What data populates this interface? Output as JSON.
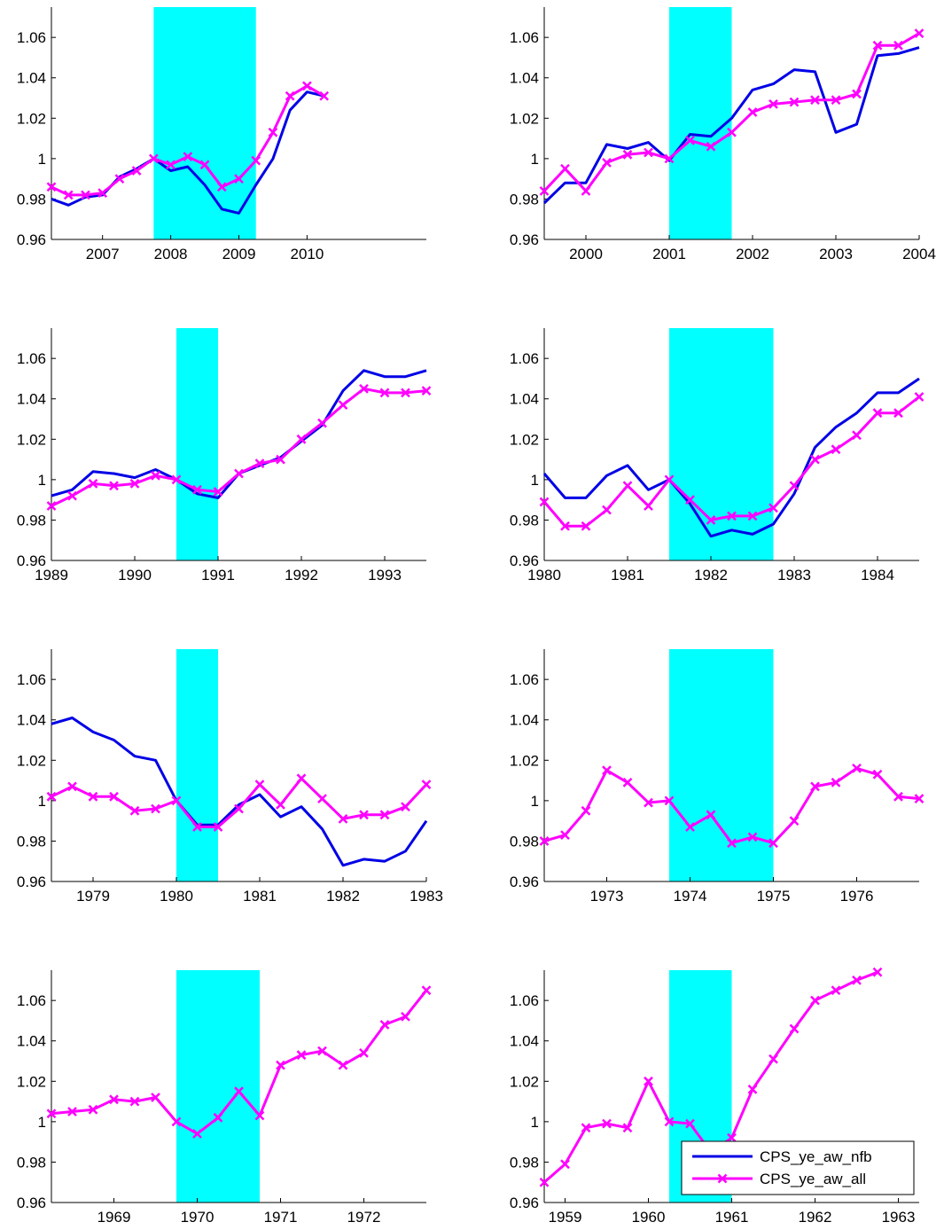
{
  "colors": {
    "recession_band": "#00ffff",
    "nfb_line": "#0000e6",
    "all_line": "#ff00ff",
    "axis": "#000000"
  },
  "legend": {
    "placement": "bottom-right of last panel",
    "entries": [
      "CPS_ye_aw_nfb",
      "CPS_ye_aw_all"
    ]
  },
  "chart_data": [
    {
      "type": "line",
      "ylim": [
        0.96,
        1.075
      ],
      "yticks": [
        0.96,
        0.98,
        1,
        1.02,
        1.04,
        1.06
      ],
      "ytick_labels": [
        "0.96",
        "0.98",
        "1",
        "1.02",
        "1.04",
        "1.06"
      ],
      "xlim": [
        2006.25,
        2011.75
      ],
      "xticks": [
        2007,
        2008,
        2009,
        2010
      ],
      "xtick_labels": [
        "2007",
        "2008",
        "2009",
        "2010"
      ],
      "shade": [
        2007.75,
        2009.25
      ],
      "series": [
        {
          "key": "nfb",
          "name": "CPS_ye_aw_nfb",
          "x": [
            2006.25,
            2006.5,
            2006.75,
            2007,
            2007.25,
            2007.5,
            2007.75,
            2008,
            2008.25,
            2008.5,
            2008.75,
            2009,
            2009.25,
            2009.5,
            2009.75,
            2010,
            2010.25
          ],
          "values": [
            0.98,
            0.977,
            0.981,
            0.982,
            0.991,
            0.995,
            1.0,
            0.994,
            0.996,
            0.987,
            0.975,
            0.973,
            0.987,
            1.0,
            1.024,
            1.033,
            1.031
          ]
        },
        {
          "key": "all",
          "name": "CPS_ye_aw_all",
          "x": [
            2006.25,
            2006.5,
            2006.75,
            2007,
            2007.25,
            2007.5,
            2007.75,
            2008,
            2008.25,
            2008.5,
            2008.75,
            2009,
            2009.25,
            2009.5,
            2009.75,
            2010,
            2010.25
          ],
          "values": [
            0.986,
            0.982,
            0.982,
            0.983,
            0.99,
            0.994,
            1.0,
            0.997,
            1.001,
            0.997,
            0.986,
            0.99,
            0.999,
            1.013,
            1.031,
            1.036,
            1.031
          ]
        }
      ]
    },
    {
      "type": "line",
      "ylim": [
        0.96,
        1.075
      ],
      "yticks": [
        0.96,
        0.98,
        1,
        1.02,
        1.04,
        1.06
      ],
      "ytick_labels": [
        "0.96",
        "0.98",
        "1",
        "1.02",
        "1.04",
        "1.06"
      ],
      "xlim": [
        1999.5,
        2004
      ],
      "xticks": [
        2000,
        2001,
        2002,
        2003,
        2004
      ],
      "xtick_labels": [
        "2000",
        "2001",
        "2002",
        "2003",
        "2004"
      ],
      "shade": [
        2001,
        2001.75
      ],
      "series": [
        {
          "key": "nfb",
          "name": "CPS_ye_aw_nfb",
          "x": [
            1999.5,
            1999.75,
            2000,
            2000.25,
            2000.5,
            2000.75,
            2001,
            2001.25,
            2001.5,
            2001.75,
            2002,
            2002.25,
            2002.5,
            2002.75,
            2003,
            2003.25,
            2003.5,
            2003.75,
            2004
          ],
          "values": [
            0.978,
            0.988,
            0.988,
            1.007,
            1.005,
            1.008,
            0.999,
            1.012,
            1.011,
            1.02,
            1.034,
            1.037,
            1.044,
            1.043,
            1.013,
            1.017,
            1.051,
            1.052,
            1.055
          ]
        },
        {
          "key": "all",
          "name": "CPS_ye_aw_all",
          "x": [
            1999.5,
            1999.75,
            2000,
            2000.25,
            2000.5,
            2000.75,
            2001,
            2001.25,
            2001.5,
            2001.75,
            2002,
            2002.25,
            2002.5,
            2002.75,
            2003,
            2003.25,
            2003.5,
            2003.75,
            2004
          ],
          "values": [
            0.984,
            0.995,
            0.984,
            0.998,
            1.002,
            1.003,
            1.0,
            1.009,
            1.006,
            1.013,
            1.023,
            1.027,
            1.028,
            1.029,
            1.029,
            1.032,
            1.056,
            1.056,
            1.062
          ]
        }
      ]
    },
    {
      "type": "line",
      "ylim": [
        0.96,
        1.075
      ],
      "yticks": [
        0.96,
        0.98,
        1,
        1.02,
        1.04,
        1.06
      ],
      "ytick_labels": [
        "0.96",
        "0.98",
        "1",
        "1.02",
        "1.04",
        "1.06"
      ],
      "xlim": [
        1989,
        1993.5
      ],
      "xticks": [
        1989,
        1990,
        1991,
        1992,
        1993
      ],
      "xtick_labels": [
        "1989",
        "1990",
        "1991",
        "1992",
        "1993"
      ],
      "shade": [
        1990.5,
        1991
      ],
      "series": [
        {
          "key": "nfb",
          "name": "CPS_ye_aw_nfb",
          "x": [
            1989,
            1989.25,
            1989.5,
            1989.75,
            1990,
            1990.25,
            1990.5,
            1990.75,
            1991,
            1991.25,
            1991.5,
            1991.75,
            1992,
            1992.25,
            1992.5,
            1992.75,
            1993,
            1993.25,
            1993.5
          ],
          "values": [
            0.992,
            0.995,
            1.004,
            1.003,
            1.001,
            1.005,
            1.0,
            0.993,
            0.991,
            1.003,
            1.007,
            1.011,
            1.019,
            1.027,
            1.044,
            1.054,
            1.051,
            1.051,
            1.054
          ]
        },
        {
          "key": "all",
          "name": "CPS_ye_aw_all",
          "x": [
            1989,
            1989.25,
            1989.5,
            1989.75,
            1990,
            1990.25,
            1990.5,
            1990.75,
            1991,
            1991.25,
            1991.5,
            1991.75,
            1992,
            1992.25,
            1992.5,
            1992.75,
            1993,
            1993.25,
            1993.5
          ],
          "values": [
            0.987,
            0.992,
            0.998,
            0.997,
            0.998,
            1.002,
            1.0,
            0.995,
            0.994,
            1.003,
            1.008,
            1.01,
            1.02,
            1.028,
            1.037,
            1.045,
            1.043,
            1.043,
            1.044
          ]
        }
      ]
    },
    {
      "type": "line",
      "ylim": [
        0.96,
        1.075
      ],
      "yticks": [
        0.96,
        0.98,
        1,
        1.02,
        1.04,
        1.06
      ],
      "ytick_labels": [
        "0.96",
        "0.98",
        "1",
        "1.02",
        "1.04",
        "1.06"
      ],
      "xlim": [
        1980,
        1984.5
      ],
      "xticks": [
        1980,
        1981,
        1982,
        1983,
        1984
      ],
      "xtick_labels": [
        "1980",
        "1981",
        "1982",
        "1983",
        "1984"
      ],
      "shade": [
        1981.5,
        1982.75
      ],
      "series": [
        {
          "key": "nfb",
          "name": "CPS_ye_aw_nfb",
          "x": [
            1980,
            1980.25,
            1980.5,
            1980.75,
            1981,
            1981.25,
            1981.5,
            1981.75,
            1982,
            1982.25,
            1982.5,
            1982.75,
            1983,
            1983.25,
            1983.5,
            1983.75,
            1984,
            1984.25,
            1984.5
          ],
          "values": [
            1.003,
            0.991,
            0.991,
            1.002,
            1.007,
            0.995,
            1.0,
            0.988,
            0.972,
            0.975,
            0.973,
            0.978,
            0.993,
            1.016,
            1.026,
            1.033,
            1.043,
            1.043,
            1.05
          ]
        },
        {
          "key": "all",
          "name": "CPS_ye_aw_all",
          "x": [
            1980,
            1980.25,
            1980.5,
            1980.75,
            1981,
            1981.25,
            1981.5,
            1981.75,
            1982,
            1982.25,
            1982.5,
            1982.75,
            1983,
            1983.25,
            1983.5,
            1983.75,
            1984,
            1984.25,
            1984.5
          ],
          "values": [
            0.989,
            0.977,
            0.977,
            0.985,
            0.997,
            0.987,
            1.0,
            0.99,
            0.98,
            0.982,
            0.982,
            0.986,
            0.997,
            1.01,
            1.015,
            1.022,
            1.033,
            1.033,
            1.041
          ]
        }
      ]
    },
    {
      "type": "line",
      "ylim": [
        0.96,
        1.075
      ],
      "yticks": [
        0.96,
        0.98,
        1,
        1.02,
        1.04,
        1.06
      ],
      "ytick_labels": [
        "0.96",
        "0.98",
        "1",
        "1.02",
        "1.04",
        "1.06"
      ],
      "xlim": [
        1978.5,
        1983
      ],
      "xticks": [
        1979,
        1980,
        1981,
        1982,
        1983
      ],
      "xtick_labels": [
        "1979",
        "1980",
        "1981",
        "1982",
        "1983"
      ],
      "shade": [
        1980,
        1980.5
      ],
      "series": [
        {
          "key": "nfb",
          "name": "CPS_ye_aw_nfb",
          "x": [
            1978.5,
            1978.75,
            1979,
            1979.25,
            1979.5,
            1979.75,
            1980,
            1980.25,
            1980.5,
            1980.75,
            1981,
            1981.25,
            1981.5,
            1981.75,
            1982,
            1982.25,
            1982.5,
            1982.75,
            1983
          ],
          "values": [
            1.038,
            1.041,
            1.034,
            1.03,
            1.022,
            1.02,
            1.0,
            0.988,
            0.988,
            0.998,
            1.003,
            0.992,
            0.997,
            0.986,
            0.968,
            0.971,
            0.97,
            0.975,
            0.99
          ]
        },
        {
          "key": "all",
          "name": "CPS_ye_aw_all",
          "x": [
            1978.5,
            1978.75,
            1979,
            1979.25,
            1979.5,
            1979.75,
            1980,
            1980.25,
            1980.5,
            1980.75,
            1981,
            1981.25,
            1981.5,
            1981.75,
            1982,
            1982.25,
            1982.5,
            1982.75,
            1983
          ],
          "values": [
            1.002,
            1.007,
            1.002,
            1.002,
            0.995,
            0.996,
            1.0,
            0.987,
            0.987,
            0.996,
            1.008,
            0.998,
            1.011,
            1.001,
            0.991,
            0.993,
            0.993,
            0.997,
            1.008
          ]
        }
      ]
    },
    {
      "type": "line",
      "ylim": [
        0.96,
        1.075
      ],
      "yticks": [
        0.96,
        0.98,
        1,
        1.02,
        1.04,
        1.06
      ],
      "ytick_labels": [
        "0.96",
        "0.98",
        "1",
        "1.02",
        "1.04",
        "1.06"
      ],
      "xlim": [
        1972.25,
        1976.75
      ],
      "xticks": [
        1973,
        1974,
        1975,
        1976
      ],
      "xtick_labels": [
        "1973",
        "1974",
        "1975",
        "1976"
      ],
      "shade": [
        1973.75,
        1975
      ],
      "series": [
        {
          "key": "all",
          "name": "CPS_ye_aw_all",
          "x": [
            1972.25,
            1972.5,
            1972.75,
            1973,
            1973.25,
            1973.5,
            1973.75,
            1974,
            1974.25,
            1974.5,
            1974.75,
            1975,
            1975.25,
            1975.5,
            1975.75,
            1976,
            1976.25,
            1976.5,
            1976.75
          ],
          "values": [
            0.98,
            0.983,
            0.995,
            1.015,
            1.009,
            0.999,
            1.0,
            0.987,
            0.993,
            0.979,
            0.982,
            0.979,
            0.99,
            1.007,
            1.009,
            1.016,
            1.013,
            1.002,
            1.001
          ]
        }
      ]
    },
    {
      "type": "line",
      "ylim": [
        0.96,
        1.075
      ],
      "yticks": [
        0.96,
        0.98,
        1,
        1.02,
        1.04,
        1.06
      ],
      "ytick_labels": [
        "0.96",
        "0.98",
        "1",
        "1.02",
        "1.04",
        "1.06"
      ],
      "xlim": [
        1968.25,
        1972.75
      ],
      "xticks": [
        1969,
        1970,
        1971,
        1972
      ],
      "xtick_labels": [
        "1969",
        "1970",
        "1971",
        "1972"
      ],
      "shade": [
        1969.75,
        1970.75
      ],
      "series": [
        {
          "key": "all",
          "name": "CPS_ye_aw_all",
          "x": [
            1968.25,
            1968.5,
            1968.75,
            1969,
            1969.25,
            1969.5,
            1969.75,
            1970,
            1970.25,
            1970.5,
            1970.75,
            1971,
            1971.25,
            1971.5,
            1971.75,
            1972,
            1972.25,
            1972.5,
            1972.75
          ],
          "values": [
            1.004,
            1.005,
            1.006,
            1.011,
            1.01,
            1.012,
            1.0,
            0.994,
            1.002,
            1.015,
            1.003,
            1.028,
            1.033,
            1.035,
            1.028,
            1.034,
            1.048,
            1.052,
            1.065
          ]
        }
      ]
    },
    {
      "type": "line",
      "ylim": [
        0.96,
        1.075
      ],
      "yticks": [
        0.96,
        0.98,
        1,
        1.02,
        1.04,
        1.06
      ],
      "ytick_labels": [
        "0.96",
        "0.98",
        "1",
        "1.02",
        "1.04",
        "1.06"
      ],
      "xlim": [
        1958.75,
        1963.25
      ],
      "xticks": [
        1959,
        1960,
        1961,
        1962,
        1963
      ],
      "xtick_labels": [
        "1959",
        "1960",
        "1961",
        "1962",
        "1963"
      ],
      "shade": [
        1960.25,
        1961
      ],
      "legend": true,
      "series": [
        {
          "key": "all",
          "name": "CPS_ye_aw_all",
          "x": [
            1958.75,
            1959,
            1959.25,
            1959.5,
            1959.75,
            1960,
            1960.25,
            1960.5,
            1960.75,
            1961,
            1961.25,
            1961.5,
            1961.75,
            1962,
            1962.25,
            1962.5,
            1962.75
          ],
          "values": [
            0.97,
            0.979,
            0.997,
            0.999,
            0.997,
            1.02,
            1.0,
            0.999,
            0.985,
            0.992,
            1.016,
            1.031,
            1.046,
            1.06,
            1.065,
            1.07,
            1.074
          ]
        }
      ]
    }
  ]
}
